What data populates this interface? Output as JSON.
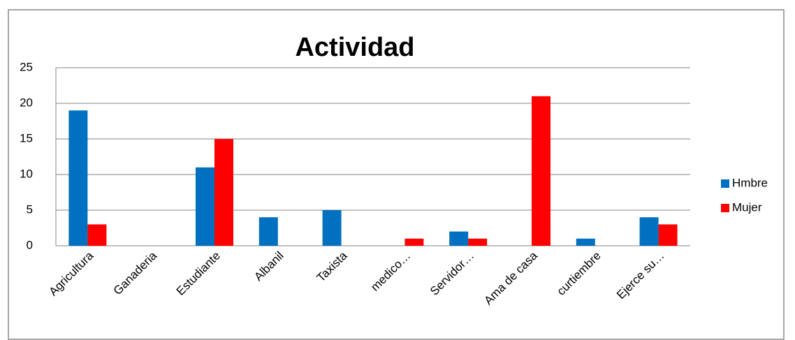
{
  "chart_data": {
    "type": "bar",
    "title": "Actividad",
    "categories": [
      "Agricultura",
      "Ganaderia",
      "Estudiante",
      "Albanil",
      "Taxista",
      "medico…",
      "Servidor…",
      "Ama de casa",
      "curtiembre",
      "Ejerce su…"
    ],
    "series": [
      {
        "name": "Hmbre",
        "color": "#0070c0",
        "values": [
          19,
          0,
          11,
          4,
          5,
          0,
          2,
          0,
          1,
          4
        ]
      },
      {
        "name": "Mujer",
        "color": "#ff0000",
        "values": [
          3,
          0,
          15,
          0,
          0,
          1,
          1,
          21,
          0,
          3
        ]
      }
    ],
    "ylim": [
      0,
      25
    ],
    "yticks": [
      0,
      5,
      10,
      15,
      20,
      25
    ],
    "grid": true,
    "legend": "right"
  }
}
